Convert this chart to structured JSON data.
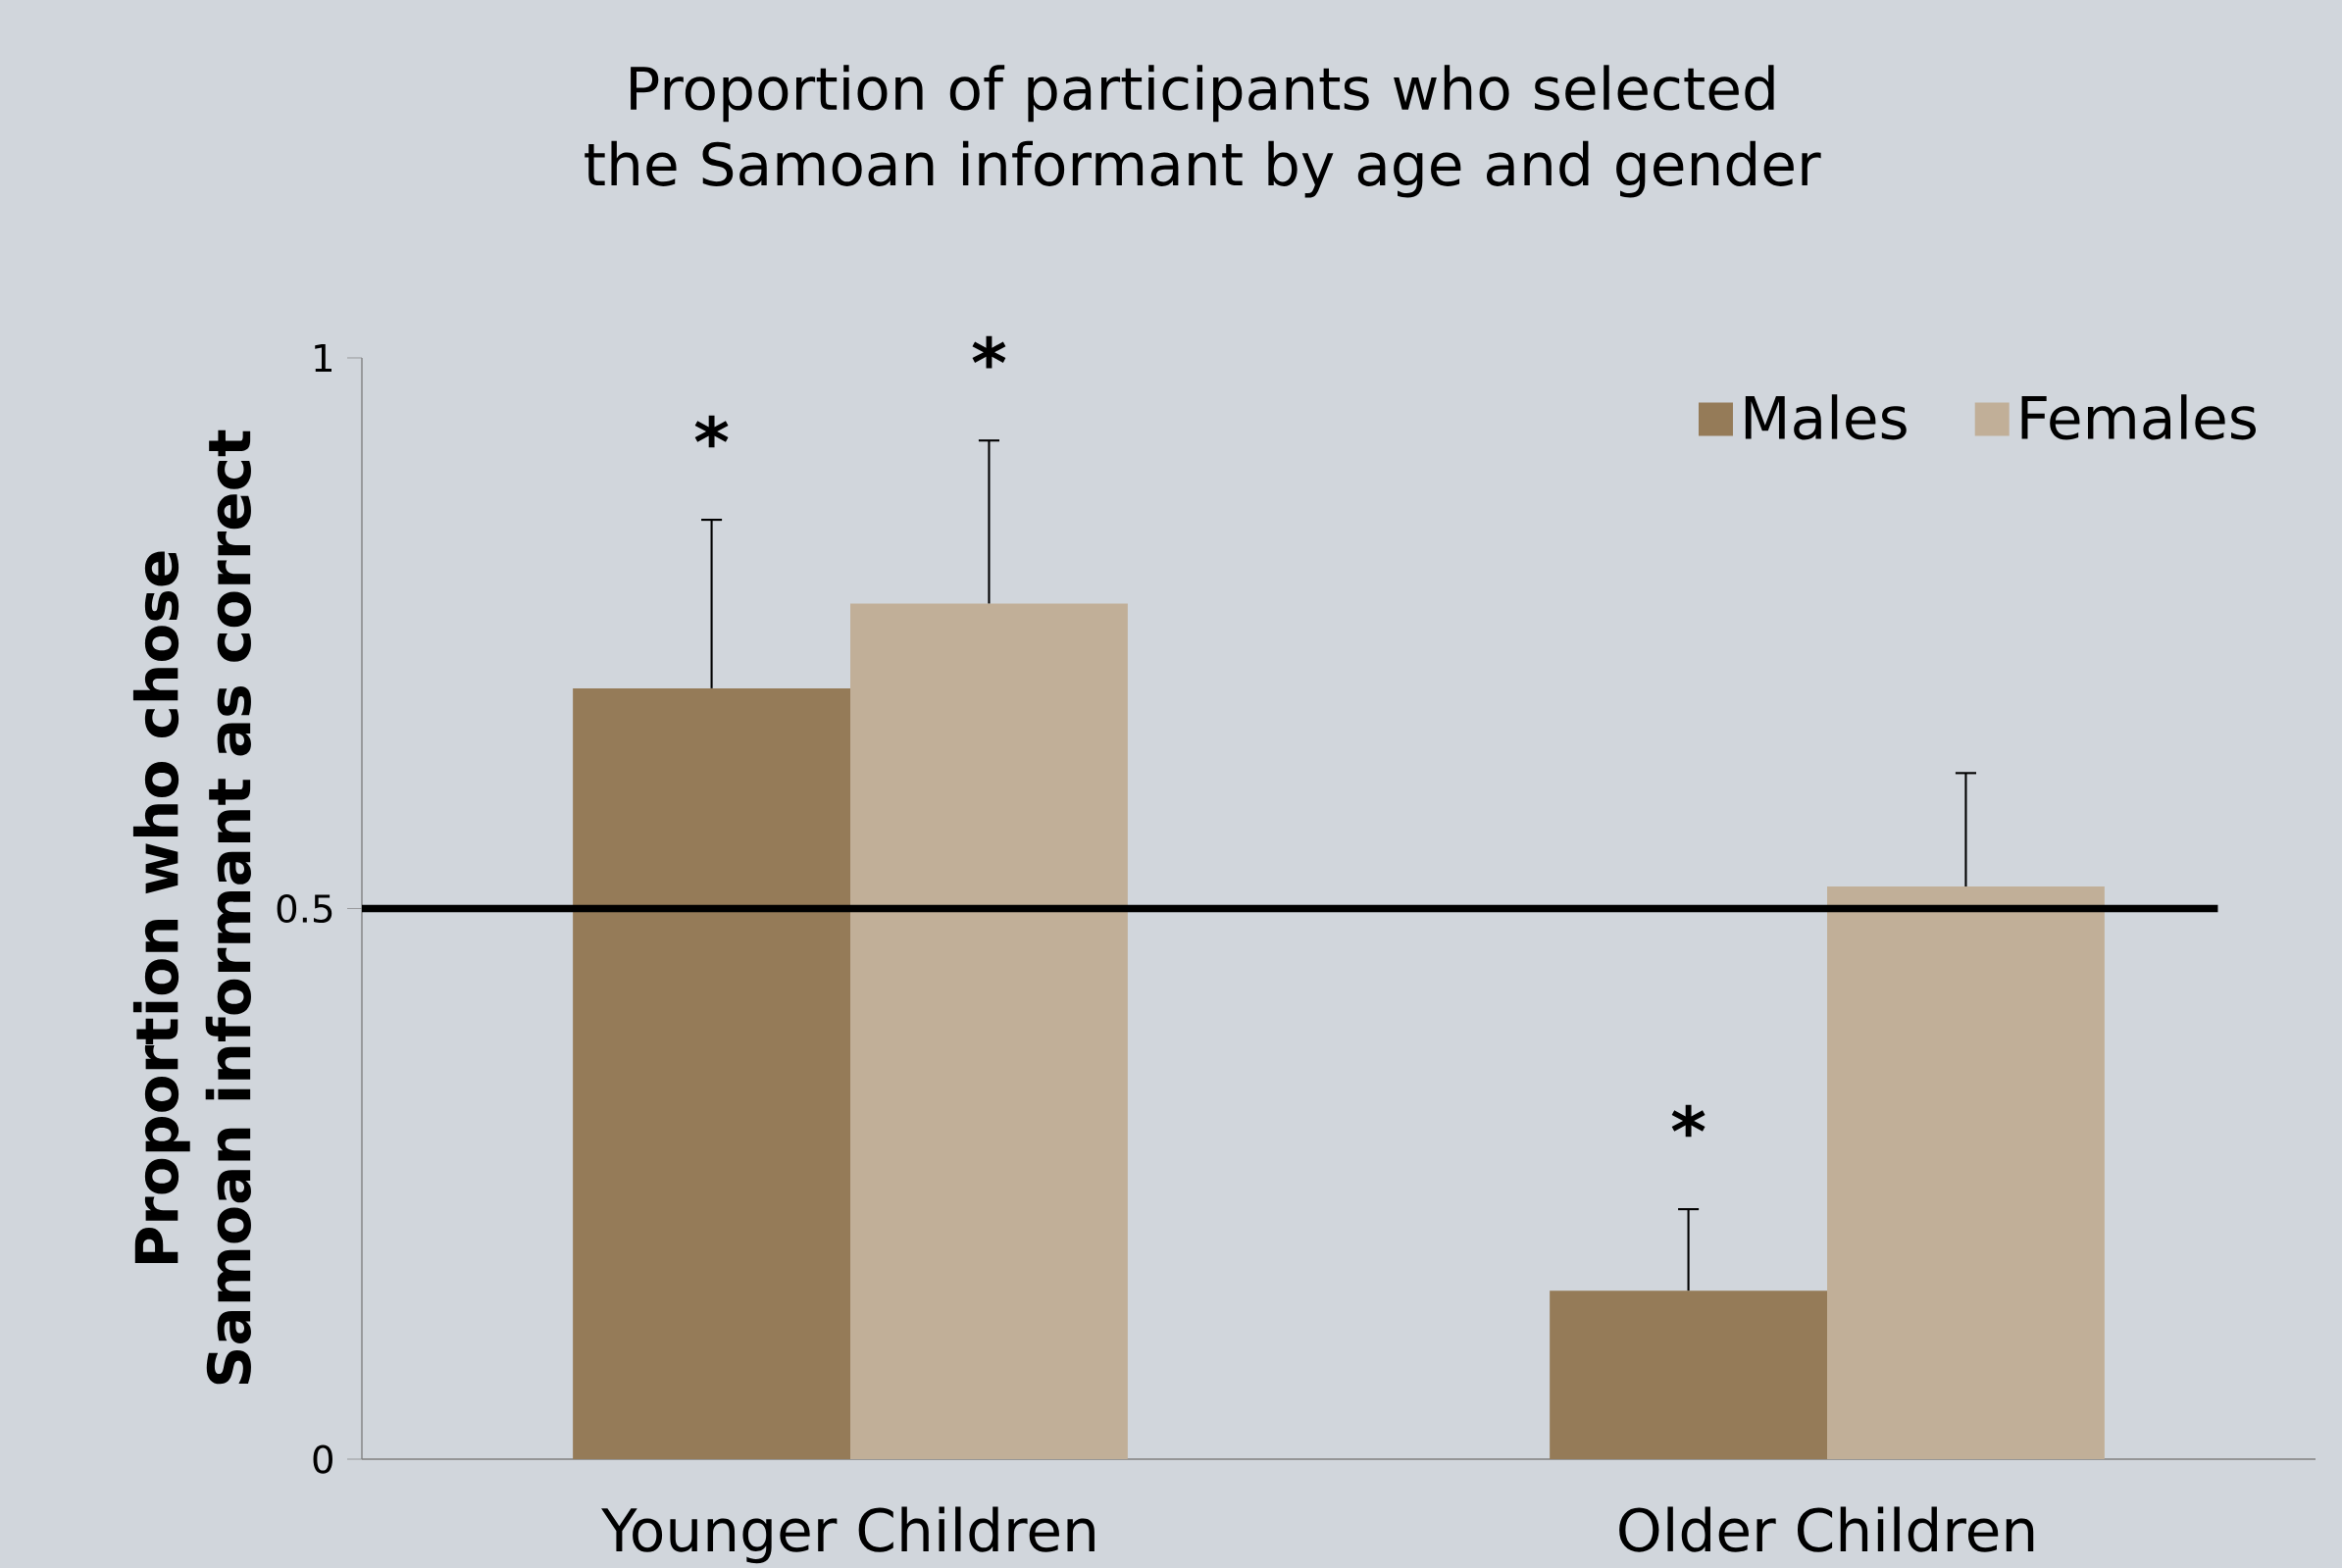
{
  "chart_data": {
    "type": "bar",
    "title": "Proportion of participants who selected the Samoan informant by age and gender",
    "ylabel": "Proportion who chose Samoan informant as correct",
    "categories": [
      "Younger Children",
      "Older Children"
    ],
    "series": [
      {
        "name": "Males",
        "color": "#957b58",
        "values": [
          0.7,
          0.153
        ],
        "errors": [
          [
            0.7,
            0.853
          ],
          [
            0.153,
            0.227
          ]
        ]
      },
      {
        "name": "Females",
        "color": "#c1af98",
        "values": [
          0.777,
          0.52
        ],
        "errors": [
          [
            0.777,
            0.925
          ],
          [
            0.52,
            0.623
          ]
        ]
      }
    ],
    "ylim": [
      0,
      1
    ],
    "yticks": [
      0,
      0.5,
      1
    ],
    "grid": false,
    "legend": "top right",
    "ref_lines": [
      {
        "axis": "y",
        "value": 0.5,
        "color": "#000000"
      }
    ],
    "annotations": [
      "*",
      "*",
      "*"
    ]
  }
}
